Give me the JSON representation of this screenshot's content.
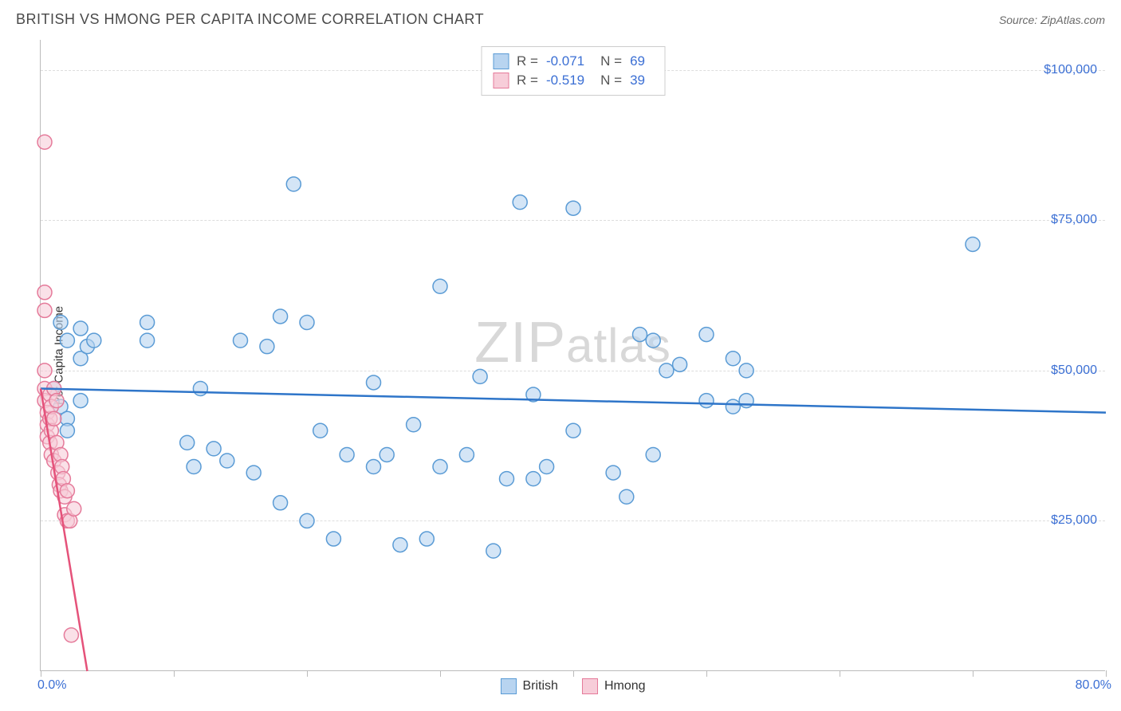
{
  "title": "BRITISH VS HMONG PER CAPITA INCOME CORRELATION CHART",
  "source": "Source: ZipAtlas.com",
  "watermark_zip": "ZIP",
  "watermark_atlas": "atlas",
  "chart": {
    "type": "scatter",
    "ylabel": "Per Capita Income",
    "xlim": [
      0,
      80
    ],
    "ylim": [
      0,
      105000
    ],
    "xticks": [
      0,
      10,
      20,
      30,
      40,
      50,
      60,
      70,
      80
    ],
    "xtick_labels": {
      "0": "0.0%",
      "80": "80.0%"
    },
    "yticks": [
      25000,
      50000,
      75000,
      100000
    ],
    "ytick_labels": [
      "$25,000",
      "$50,000",
      "$75,000",
      "$100,000"
    ],
    "grid_color": "#dddddd",
    "background_color": "#ffffff",
    "axis_color": "#bbbbbb",
    "tick_label_color": "#3b6fd4",
    "marker_radius": 9,
    "marker_stroke_width": 1.5,
    "trend_line_width": 2.5,
    "series": [
      {
        "name": "British",
        "fill_color": "#b8d4f0",
        "stroke_color": "#5a9bd5",
        "line_color": "#2e75c9",
        "R": "-0.071",
        "N": "69",
        "trend": {
          "x1": 0,
          "y1": 47000,
          "x2": 80,
          "y2": 43000
        },
        "points": [
          [
            1.5,
            58000
          ],
          [
            2,
            55000
          ],
          [
            3,
            52000
          ],
          [
            3,
            57000
          ],
          [
            3.5,
            54000
          ],
          [
            4,
            55000
          ],
          [
            1,
            47000
          ],
          [
            1.5,
            44000
          ],
          [
            2,
            42000
          ],
          [
            2,
            40000
          ],
          [
            3,
            45000
          ],
          [
            8,
            58000
          ],
          [
            8,
            55000
          ],
          [
            11,
            38000
          ],
          [
            11.5,
            34000
          ],
          [
            12,
            47000
          ],
          [
            13,
            37000
          ],
          [
            14,
            35000
          ],
          [
            15,
            55000
          ],
          [
            16,
            33000
          ],
          [
            17,
            54000
          ],
          [
            18,
            28000
          ],
          [
            18,
            59000
          ],
          [
            19,
            81000
          ],
          [
            20,
            58000
          ],
          [
            20,
            25000
          ],
          [
            21,
            40000
          ],
          [
            22,
            22000
          ],
          [
            23,
            36000
          ],
          [
            25,
            48000
          ],
          [
            25,
            34000
          ],
          [
            26,
            36000
          ],
          [
            27,
            21000
          ],
          [
            28,
            41000
          ],
          [
            29,
            22000
          ],
          [
            30,
            64000
          ],
          [
            30,
            34000
          ],
          [
            32,
            36000
          ],
          [
            33,
            49000
          ],
          [
            34,
            20000
          ],
          [
            35,
            32000
          ],
          [
            36,
            78000
          ],
          [
            37,
            46000
          ],
          [
            37,
            32000
          ],
          [
            38,
            34000
          ],
          [
            40,
            40000
          ],
          [
            40,
            77000
          ],
          [
            43,
            33000
          ],
          [
            44,
            29000
          ],
          [
            45,
            56000
          ],
          [
            46,
            36000
          ],
          [
            47,
            50000
          ],
          [
            48,
            51000
          ],
          [
            50,
            45000
          ],
          [
            50,
            56000
          ],
          [
            52,
            44000
          ],
          [
            52,
            52000
          ],
          [
            53,
            45000
          ],
          [
            53,
            50000
          ],
          [
            70,
            71000
          ],
          [
            46,
            55000
          ]
        ]
      },
      {
        "name": "Hmong",
        "fill_color": "#f7cdd9",
        "stroke_color": "#e57a9a",
        "line_color": "#e5527a",
        "R": "-0.519",
        "N": "39",
        "trend": {
          "x1": 0,
          "y1": 47000,
          "x2": 3.5,
          "y2": 0
        },
        "points": [
          [
            0.3,
            88000
          ],
          [
            0.3,
            63000
          ],
          [
            0.3,
            60000
          ],
          [
            0.3,
            50000
          ],
          [
            0.3,
            47000
          ],
          [
            0.3,
            45000
          ],
          [
            0.5,
            43000
          ],
          [
            0.5,
            41000
          ],
          [
            0.5,
            39000
          ],
          [
            0.7,
            46000
          ],
          [
            0.7,
            42000
          ],
          [
            0.7,
            38000
          ],
          [
            0.8,
            44000
          ],
          [
            0.8,
            40000
          ],
          [
            0.8,
            36000
          ],
          [
            1.0,
            47000
          ],
          [
            1.0,
            42000
          ],
          [
            1.0,
            35000
          ],
          [
            1.2,
            45000
          ],
          [
            1.2,
            38000
          ],
          [
            1.3,
            33000
          ],
          [
            1.4,
            31000
          ],
          [
            1.5,
            36000
          ],
          [
            1.5,
            30000
          ],
          [
            1.6,
            34000
          ],
          [
            1.7,
            32000
          ],
          [
            1.8,
            29000
          ],
          [
            1.8,
            26000
          ],
          [
            2.0,
            30000
          ],
          [
            2.0,
            25000
          ],
          [
            2.2,
            25000
          ],
          [
            2.3,
            6000
          ],
          [
            2.5,
            27000
          ]
        ]
      }
    ]
  },
  "legend_bottom": [
    {
      "label": "British",
      "fill": "#b8d4f0",
      "stroke": "#5a9bd5"
    },
    {
      "label": "Hmong",
      "fill": "#f7cdd9",
      "stroke": "#e57a9a"
    }
  ]
}
